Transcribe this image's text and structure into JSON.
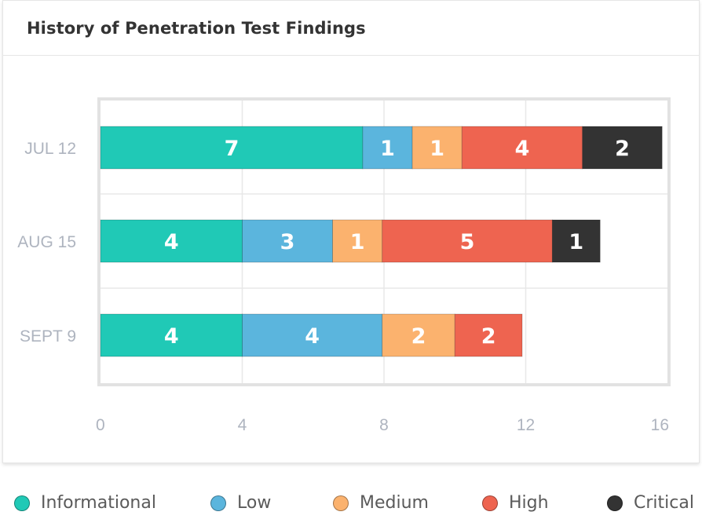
{
  "card": {
    "title": "History of Penetration Test Findings"
  },
  "colors": {
    "Informational": "#20c9b6",
    "Low": "#5bb5dd",
    "Medium": "#fbb26e",
    "High": "#ee6450",
    "Critical": "#333333"
  },
  "chart_data": {
    "type": "bar",
    "orientation": "horizontal",
    "stacked": true,
    "title": "History of Penetration Test Findings",
    "categories": [
      "JUL 12",
      "AUG 15",
      "SEPT 9"
    ],
    "series": [
      {
        "name": "Informational",
        "values": [
          7,
          4,
          4
        ]
      },
      {
        "name": "Low",
        "values": [
          1,
          3,
          4
        ]
      },
      {
        "name": "Medium",
        "values": [
          1,
          1,
          2
        ]
      },
      {
        "name": "High",
        "values": [
          4,
          5,
          2
        ]
      },
      {
        "name": "Critical",
        "values": [
          2,
          1,
          0
        ]
      }
    ],
    "segment_widths": [
      [
        7.4,
        1.4,
        1.4,
        3.4,
        2.25
      ],
      [
        4,
        2.55,
        1.4,
        4.8,
        1.35
      ],
      [
        4,
        3.95,
        2.05,
        1.9,
        0
      ]
    ],
    "xlim": [
      0,
      16
    ],
    "xticks": [
      "0",
      "4",
      "8",
      "12",
      "16"
    ],
    "grid": true,
    "legend": "bottom"
  }
}
